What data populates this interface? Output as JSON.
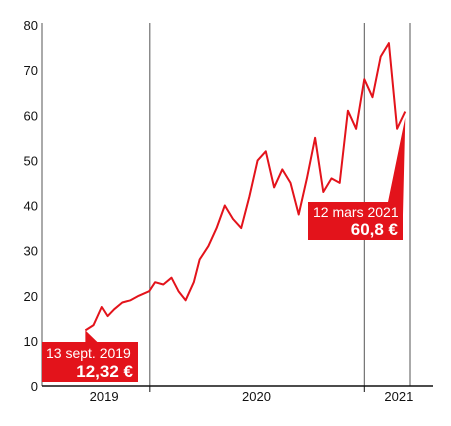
{
  "chart_data": {
    "type": "line",
    "title": "",
    "xlabel": "",
    "ylabel": "",
    "x_ticks": [
      "2019",
      "2020",
      "2021"
    ],
    "y_ticks": [
      0,
      10,
      20,
      30,
      40,
      50,
      60,
      70,
      80
    ],
    "ylim": [
      0,
      80
    ],
    "xlim": [
      "2019-09-13",
      "2021-03-12"
    ],
    "grid": "vertical lines at year boundaries",
    "colors": {
      "line": "#e3131b",
      "callout": "#e3131b",
      "axis": "#111111",
      "grid": "#555555"
    },
    "series": [
      {
        "x": [
          "2019-09-13",
          "2019-09-27",
          "2019-10-11",
          "2019-10-21",
          "2019-11-01",
          "2019-11-15",
          "2019-11-29",
          "2019-12-13",
          "2019-12-31",
          "2020-01-10",
          "2020-01-24",
          "2020-02-07",
          "2020-02-19",
          "2020-03-02",
          "2020-03-16",
          "2020-03-26",
          "2020-04-10",
          "2020-04-24",
          "2020-05-08",
          "2020-05-22",
          "2020-06-05",
          "2020-06-19",
          "2020-07-03",
          "2020-07-17",
          "2020-07-31",
          "2020-08-14",
          "2020-08-28",
          "2020-09-11",
          "2020-09-25",
          "2020-10-09",
          "2020-10-23",
          "2020-11-06",
          "2020-11-20",
          "2020-12-04",
          "2020-12-18",
          "2021-01-01",
          "2021-01-15",
          "2021-01-29",
          "2021-02-12",
          "2021-02-26",
          "2021-03-12"
        ],
        "values": [
          12.32,
          13.5,
          17.5,
          15.5,
          17.0,
          18.5,
          19.0,
          20.0,
          21.0,
          23.0,
          22.5,
          24.0,
          21.0,
          19.0,
          23.0,
          28.0,
          31.0,
          35.0,
          40.0,
          37.0,
          35.0,
          42.0,
          50.0,
          52.0,
          44.0,
          48.0,
          45.0,
          38.0,
          46.0,
          55.0,
          43.0,
          46.0,
          45.0,
          61.0,
          57.0,
          68.0,
          64.0,
          73.0,
          76.0,
          57.0,
          60.8
        ]
      }
    ],
    "annotations": [
      {
        "date_label": "13 sept. 2019",
        "value_label": "12,32 €",
        "x": "2019-09-13",
        "y": 12.32
      },
      {
        "date_label": "12 mars 2021",
        "value_label": "60,8 €",
        "x": "2021-03-12",
        "y": 60.8
      }
    ]
  }
}
